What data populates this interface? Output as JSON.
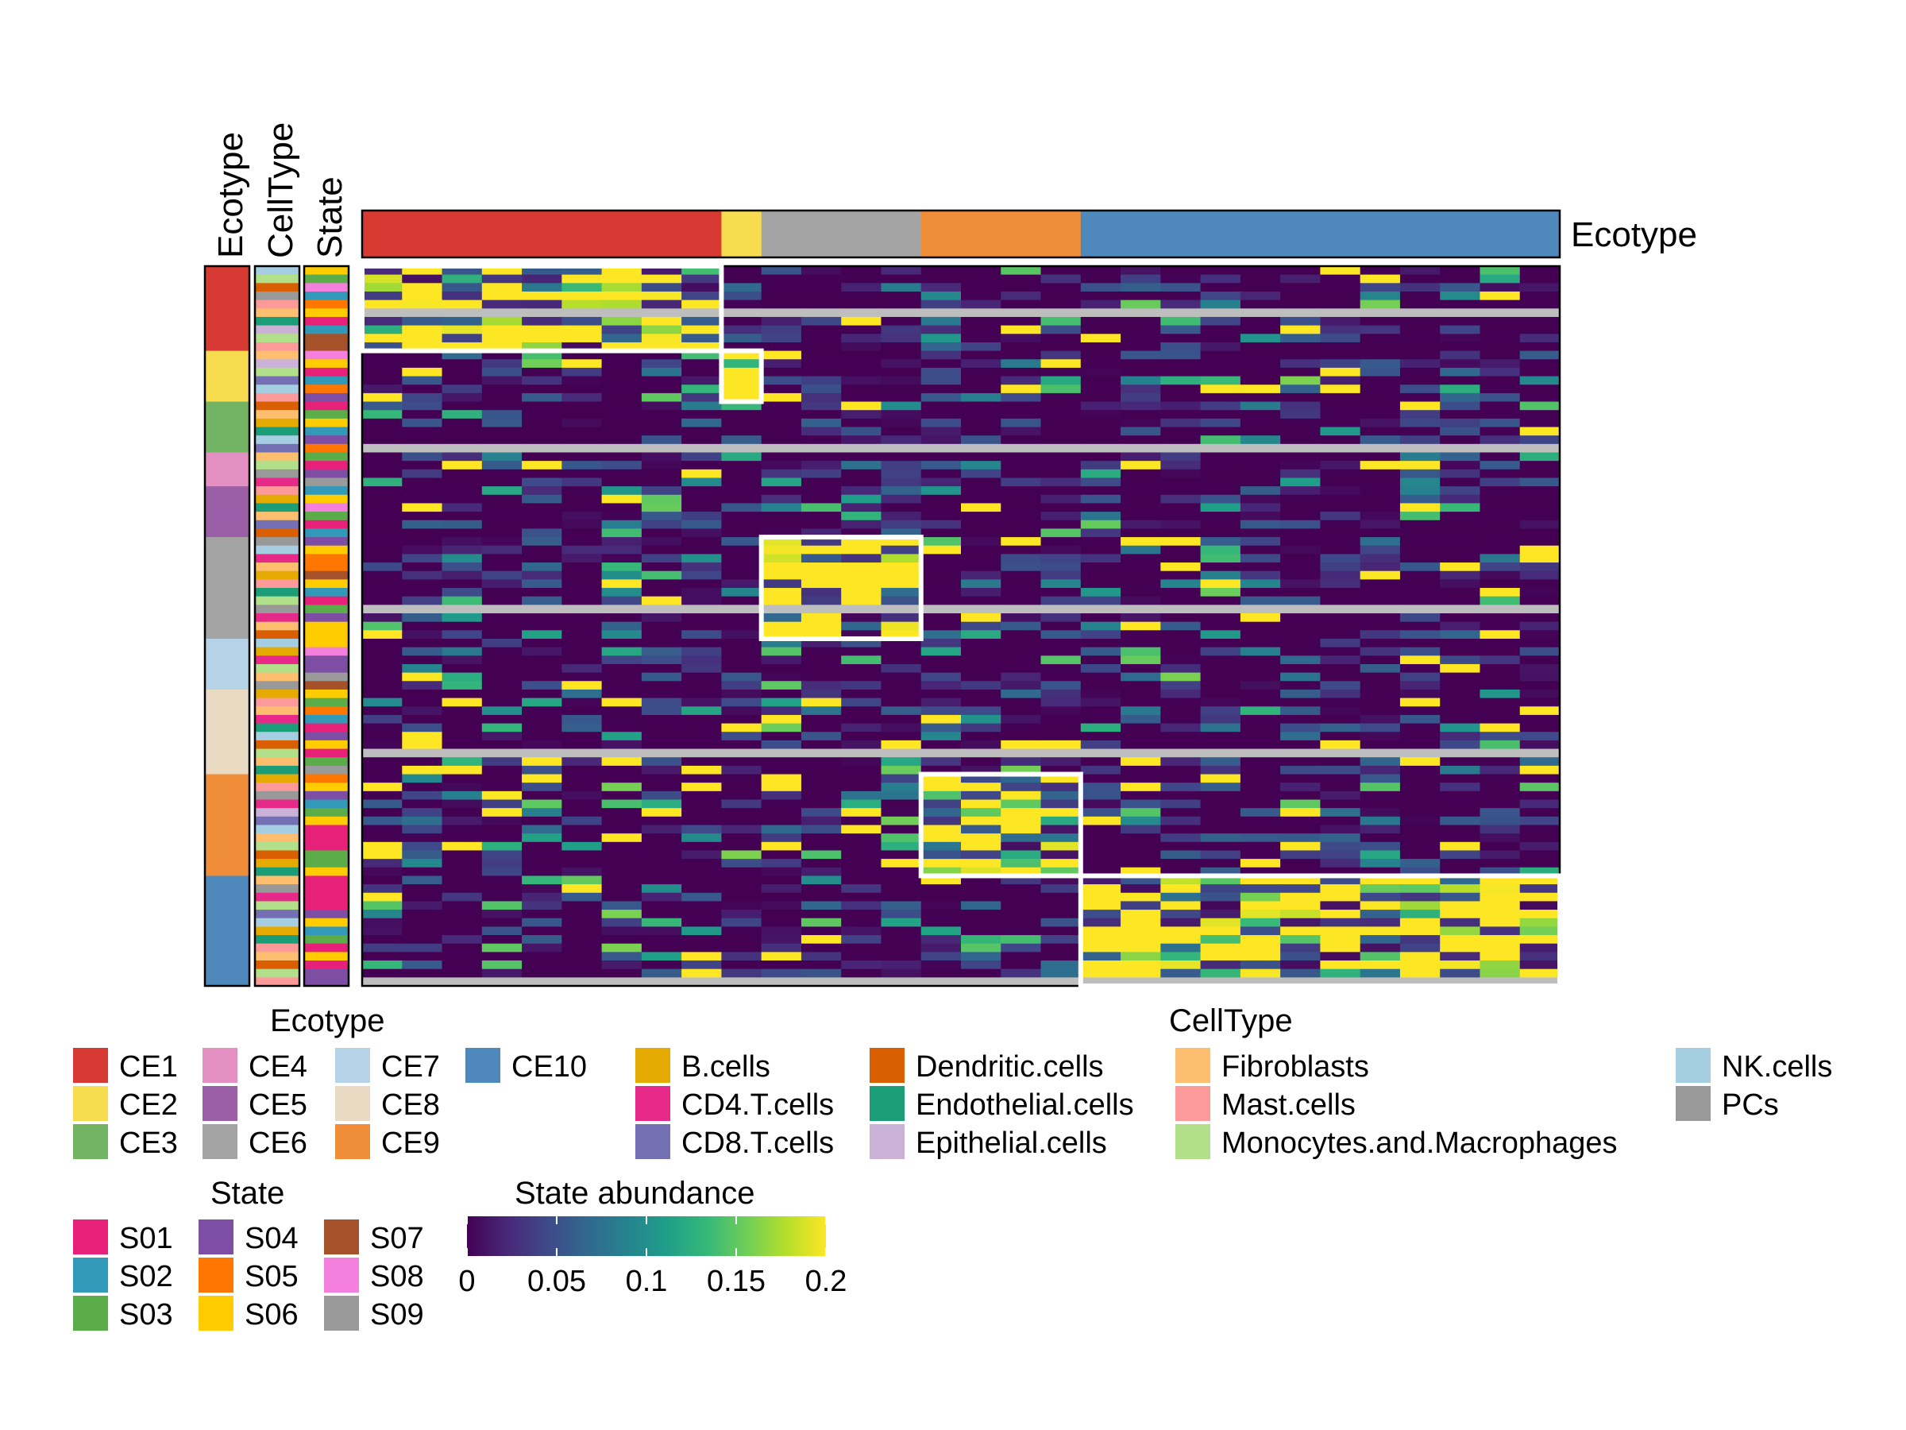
{
  "chart_data": {
    "type": "heatmap",
    "annotations": {
      "top_ecotype_label": "Ecotype",
      "left_labels": [
        "Ecotype",
        "CellType",
        "State"
      ]
    },
    "color_scale": {
      "title": "State abundance",
      "ticks": [
        "0",
        "0.05",
        "0.1",
        "0.15",
        "0.2"
      ],
      "range": [
        0,
        0.2
      ],
      "colors": [
        "#440154",
        "#482878",
        "#3e4989",
        "#31688e",
        "#26828e",
        "#1f9e89",
        "#35b779",
        "#6ece58",
        "#b5de2b",
        "#fde725"
      ],
      "na_color": "#bebebe"
    },
    "ecotype_legend": {
      "title": "Ecotype",
      "items": [
        {
          "label": "CE1",
          "color": "#d73a33"
        },
        {
          "label": "CE2",
          "color": "#f7dc4f"
        },
        {
          "label": "CE3",
          "color": "#72b463"
        },
        {
          "label": "CE4",
          "color": "#e48fc1"
        },
        {
          "label": "CE5",
          "color": "#9b5fa8"
        },
        {
          "label": "CE6",
          "color": "#a4a4a4"
        },
        {
          "label": "CE7",
          "color": "#b5d2e6"
        },
        {
          "label": "CE8",
          "color": "#e8dac3"
        },
        {
          "label": "CE9",
          "color": "#f08d38"
        },
        {
          "label": "CE10",
          "color": "#4f88bb"
        }
      ]
    },
    "celltype_legend": {
      "title": "CellType",
      "items": [
        {
          "label": "B.cells",
          "color": "#e6ab02"
        },
        {
          "label": "CD4.T.cells",
          "color": "#e7298a"
        },
        {
          "label": "CD8.T.cells",
          "color": "#7570b3"
        },
        {
          "label": "Dendritic.cells",
          "color": "#d95f02"
        },
        {
          "label": "Endothelial.cells",
          "color": "#1b9e77"
        },
        {
          "label": "Epithelial.cells",
          "color": "#cab2d6"
        },
        {
          "label": "Fibroblasts",
          "color": "#fdbf6f"
        },
        {
          "label": "Mast.cells",
          "color": "#fb9a99"
        },
        {
          "label": "Monocytes.and.Macrophages",
          "color": "#b2df8a"
        },
        {
          "label": "NK.cells",
          "color": "#a6cee3"
        },
        {
          "label": "PCs",
          "color": "#999999"
        }
      ]
    },
    "state_legend": {
      "title": "State",
      "items": [
        {
          "label": "S01",
          "color": "#e7207a"
        },
        {
          "label": "S02",
          "color": "#3399b8"
        },
        {
          "label": "S03",
          "color": "#5aad48"
        },
        {
          "label": "S04",
          "color": "#7d4ea3"
        },
        {
          "label": "S05",
          "color": "#ff7700"
        },
        {
          "label": "S06",
          "color": "#ffcc00"
        },
        {
          "label": "S07",
          "color": "#a5522a"
        },
        {
          "label": "S08",
          "color": "#f57fdc"
        },
        {
          "label": "S09",
          "color": "#9a9a9a"
        }
      ]
    },
    "column_ecotypes": [
      "CE1",
      "CE1",
      "CE1",
      "CE1",
      "CE1",
      "CE1",
      "CE1",
      "CE1",
      "CE1",
      "CE2",
      "CE6",
      "CE6",
      "CE6",
      "CE6",
      "CE9",
      "CE9",
      "CE9",
      "CE9",
      "CE10",
      "CE10",
      "CE10",
      "CE10",
      "CE10",
      "CE10",
      "CE10",
      "CE10",
      "CE10",
      "CE10",
      "CE10",
      "CE10"
    ],
    "row_ecotypes": [
      "CE1",
      "CE1",
      "CE1",
      "CE1",
      "CE1",
      "CE1",
      "CE1",
      "CE1",
      "CE1",
      "CE1",
      "CE2",
      "CE2",
      "CE2",
      "CE2",
      "CE2",
      "CE2",
      "CE3",
      "CE3",
      "CE3",
      "CE3",
      "CE3",
      "CE3",
      "CE4",
      "CE4",
      "CE4",
      "CE4",
      "CE5",
      "CE5",
      "CE5",
      "CE5",
      "CE5",
      "CE5",
      "CE6",
      "CE6",
      "CE6",
      "CE6",
      "CE6",
      "CE6",
      "CE6",
      "CE6",
      "CE6",
      "CE6",
      "CE6",
      "CE6",
      "CE7",
      "CE7",
      "CE7",
      "CE7",
      "CE7",
      "CE7",
      "CE8",
      "CE8",
      "CE8",
      "CE8",
      "CE8",
      "CE8",
      "CE8",
      "CE8",
      "CE8",
      "CE8",
      "CE9",
      "CE9",
      "CE9",
      "CE9",
      "CE9",
      "CE9",
      "CE9",
      "CE9",
      "CE9",
      "CE9",
      "CE9",
      "CE9",
      "CE10",
      "CE10",
      "CE10",
      "CE10",
      "CE10",
      "CE10",
      "CE10",
      "CE10",
      "CE10",
      "CE10",
      "CE10",
      "CE10",
      "CE10"
    ],
    "row_celltypes": [
      "NK.cells",
      "Monocytes.and.Macrophages",
      "Dendritic.cells",
      "PCs",
      "Mast.cells",
      "Fibroblasts",
      "Endothelial.cells",
      "Epithelial.cells",
      "Monocytes.and.Macrophages",
      "Mast.cells",
      "Fibroblasts",
      "Epithelial.cells",
      "Monocytes.and.Macrophages",
      "CD8.T.cells",
      "NK.cells",
      "Mast.cells",
      "Dendritic.cells",
      "Fibroblasts",
      "B.cells",
      "Endothelial.cells",
      "NK.cells",
      "CD8.T.cells",
      "Fibroblasts",
      "Monocytes.and.Macrophages",
      "PCs",
      "CD4.T.cells",
      "Mast.cells",
      "B.cells",
      "Endothelial.cells",
      "Fibroblasts",
      "CD8.T.cells",
      "Dendritic.cells",
      "PCs",
      "NK.cells",
      "CD4.T.cells",
      "Fibroblasts",
      "B.cells",
      "Mast.cells",
      "Endothelial.cells",
      "Monocytes.and.Macrophages",
      "PCs",
      "CD4.T.cells",
      "Fibroblasts",
      "Dendritic.cells",
      "NK.cells",
      "B.cells",
      "CD4.T.cells",
      "Monocytes.and.Macrophages",
      "Fibroblasts",
      "PCs",
      "B.cells",
      "Mast.cells",
      "Fibroblasts",
      "CD4.T.cells",
      "Endothelial.cells",
      "NK.cells",
      "Dendritic.cells",
      "Monocytes.and.Macrophages",
      "Fibroblasts",
      "Endothelial.cells",
      "B.cells",
      "Mast.cells",
      "PCs",
      "CD4.T.cells",
      "Epithelial.cells",
      "CD8.T.cells",
      "NK.cells",
      "Fibroblasts",
      "Monocytes.and.Macrophages",
      "Dendritic.cells",
      "B.cells",
      "Endothelial.cells",
      "Fibroblasts",
      "PCs",
      "CD4.T.cells",
      "Monocytes.and.Macrophages",
      "CD8.T.cells",
      "NK.cells",
      "B.cells",
      "Endothelial.cells",
      "Mast.cells",
      "Fibroblasts",
      "Dendritic.cells",
      "Monocytes.and.Macrophages",
      "Mast.cells"
    ],
    "row_states": [
      "S06",
      "S03",
      "S08",
      "S02",
      "S05",
      "S06",
      "S01",
      "S02",
      "S07",
      "S07",
      "S08",
      "S06",
      "S01",
      "S02",
      "S05",
      "S04",
      "S01",
      "S03",
      "S06",
      "S02",
      "S04",
      "S05",
      "S03",
      "S01",
      "S04",
      "S09",
      "S02",
      "S06",
      "S08",
      "S03",
      "S01",
      "S02",
      "S04",
      "S06",
      "S05",
      "S05",
      "S07",
      "S06",
      "S02",
      "S01",
      "S03",
      "S04",
      "S06",
      "S06",
      "S06",
      "S08",
      "S04",
      "S04",
      "S09",
      "S07",
      "S06",
      "S03",
      "S05",
      "S02",
      "S01",
      "S04",
      "S06",
      "S01",
      "S03",
      "S09",
      "S05",
      "S06",
      "S04",
      "S02",
      "S03",
      "S06",
      "S01",
      "S01",
      "S01",
      "S03",
      "S03",
      "S06",
      "S01",
      "S01",
      "S01",
      "S01",
      "S04",
      "S06",
      "S02",
      "S03",
      "S01",
      "S06",
      "S01",
      "S04",
      "S04"
    ],
    "heatmap": {
      "n_rows": 85,
      "n_cols": 30,
      "na_rows": [
        5,
        21,
        40,
        57,
        84
      ],
      "note": "cell values (state abundance 0-0.2) are generated in the render script to reproduce the diagonal block pattern"
    },
    "highlight_blocks": [
      {
        "ecotype": "CE1"
      },
      {
        "ecotype": "CE2"
      },
      {
        "ecotype": "CE6"
      },
      {
        "ecotype": "CE9"
      },
      {
        "ecotype": "CE10"
      }
    ]
  }
}
